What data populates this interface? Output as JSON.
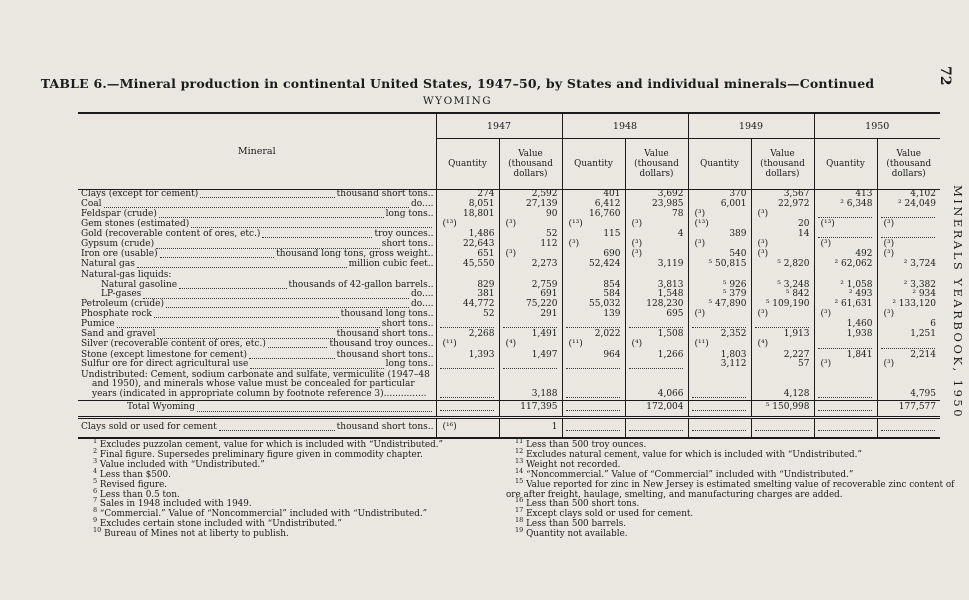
{
  "page": {
    "number": "72",
    "side_text": "MINERALS YEARBOOK, 1950"
  },
  "table": {
    "title": "TABLE 6.—Mineral production in continental United States, 1947–50, by States and individual minerals—Continued",
    "subtitle": "WYOMING",
    "header": {
      "mineral": "Mineral",
      "years": [
        "1947",
        "1948",
        "1949",
        "1950"
      ],
      "quantity": "Quantity",
      "value": "Value (thousand dollars)"
    },
    "rows": [
      {
        "label": "Clays (except for cement)",
        "unit": "thousand short tons..",
        "type": "data",
        "values": [
          "274",
          "2,592",
          "401",
          "3,692",
          "370",
          "3,567",
          "413",
          "4,102"
        ]
      },
      {
        "label": "Coal",
        "unit": "do....",
        "type": "data",
        "values": [
          "8,051",
          "27,139",
          "6,412",
          "23,985",
          "6,001",
          "22,972",
          "² 6,348",
          "² 24,049"
        ]
      },
      {
        "label": "Feldspar (crude)",
        "unit": "long tons..",
        "type": "data",
        "values": [
          "18,801",
          "90",
          "16,760",
          "78",
          "(³)",
          "(³)",
          "",
          ""
        ]
      },
      {
        "label": "Gem stones (estimated)",
        "unit": "",
        "type": "data",
        "values": [
          "(¹³)",
          "(³)",
          "(¹³)",
          "(³)",
          "(¹³)",
          "20",
          "(¹³)",
          "(³)"
        ]
      },
      {
        "label": "Gold (recoverable content of ores, etc.)",
        "unit": "troy ounces..",
        "type": "data",
        "values": [
          "1,486",
          "52",
          "115",
          "4",
          "389",
          "14",
          "",
          ""
        ]
      },
      {
        "label": "Gypsum (crude)",
        "unit": "short tons..",
        "type": "data",
        "values": [
          "22,643",
          "112",
          "(³)",
          "(³)",
          "(³)",
          "(³)",
          "(³)",
          "(³)"
        ]
      },
      {
        "label": "Iron ore (usable)",
        "unit": "thousand long tons, gross weight..",
        "type": "data",
        "values": [
          "651",
          "(³)",
          "690",
          "(³)",
          "540",
          "(³)",
          "492",
          "(³)"
        ]
      },
      {
        "label": "Natural gas",
        "unit": "million cubic feet..",
        "type": "data",
        "values": [
          "45,550",
          "2,273",
          "52,424",
          "3,119",
          "⁵ 50,815",
          "⁵ 2,820",
          "² 62,062",
          "² 3,724"
        ]
      },
      {
        "label": "Natural-gas liquids:",
        "unit": "",
        "type": "group",
        "values": [
          null,
          null,
          null,
          null,
          null,
          null,
          null,
          null
        ]
      },
      {
        "label": "Natural gasoline",
        "unit": "thousands of 42-gallon barrels..",
        "type": "data",
        "indent": 1,
        "values": [
          "829",
          "2,759",
          "854",
          "3,813",
          "⁵ 926",
          "⁵ 3,248",
          "² 1,058",
          "² 3,382"
        ]
      },
      {
        "label": "LP-gases",
        "unit": "do....",
        "type": "data",
        "indent": 1,
        "values": [
          "381",
          "691",
          "584",
          "1,548",
          "⁵ 379",
          "⁵ 842",
          "² 493",
          "² 934"
        ]
      },
      {
        "label": "Petroleum (crude)",
        "unit": "do....",
        "type": "data",
        "values": [
          "44,772",
          "75,220",
          "55,032",
          "128,230",
          "⁵ 47,890",
          "⁵ 109,190",
          "² 61,631",
          "² 133,120"
        ]
      },
      {
        "label": "Phosphate rock",
        "unit": "thousand long tons..",
        "type": "data",
        "values": [
          "52",
          "291",
          "139",
          "695",
          "(³)",
          "(³)",
          "(³)",
          "(³)"
        ]
      },
      {
        "label": "Pumice",
        "unit": "short tons..",
        "type": "data",
        "values": [
          "",
          "",
          "",
          "",
          "",
          "",
          "1,460",
          "6"
        ]
      },
      {
        "label": "Sand and gravel",
        "unit": "thousand short tons..",
        "type": "data",
        "values": [
          "2,268",
          "1,491",
          "2,022",
          "1,508",
          "2,352",
          "1,913",
          "1,938",
          "1,251"
        ]
      },
      {
        "label": "Silver (recoverable content of ores, etc.)",
        "unit": "thousand troy ounces..",
        "type": "data",
        "values": [
          "(¹¹)",
          "(⁴)",
          "(¹¹)",
          "(⁴)",
          "(¹¹)",
          "(⁴)",
          "",
          ""
        ]
      },
      {
        "label": "Stone (except limestone for cement)",
        "unit": "thousand short tons..",
        "type": "data",
        "values": [
          "1,393",
          "1,497",
          "964",
          "1,266",
          "1,803",
          "2,227",
          "1,841",
          "2,214"
        ]
      },
      {
        "label": "Sulfur ore for direct agricultural use",
        "unit": "long tons..",
        "type": "data",
        "values": [
          "",
          "",
          "",
          "",
          "3,112",
          "57",
          "(³)",
          "(³)"
        ]
      },
      {
        "label": "Undistributed: Cement, sodium carbonate and sulfate, vermiculite (1947–48 and 1950), and minerals whose value must be concealed for particular years (indicated in appropriate column by footnote reference 3)...............",
        "unit": "",
        "type": "wraprow",
        "values": [
          "",
          "3,188",
          "",
          "4,066",
          "",
          "4,128",
          "",
          "4,795"
        ]
      },
      {
        "label": "Total Wyoming",
        "unit": "",
        "type": "total",
        "values": [
          "",
          "117,395",
          "",
          "172,004",
          "",
          "⁵ 150,998",
          "",
          "177,577"
        ]
      },
      {
        "label": "Clays sold or used for cement",
        "unit": "thousand short tons..",
        "type": "final",
        "values": [
          "(¹⁶)",
          "1",
          "",
          "",
          "",
          "",
          "",
          ""
        ]
      }
    ],
    "footnotes_left": [
      {
        "marker": "1",
        "text": "Excludes puzzolan cement, value for which is included with “Undistributed.”"
      },
      {
        "marker": "2",
        "text": "Final figure.  Supersedes preliminary figure given in commodity chapter."
      },
      {
        "marker": "3",
        "text": "Value included with “Undistributed.”"
      },
      {
        "marker": "4",
        "text": "Less than $500."
      },
      {
        "marker": "5",
        "text": "Revised figure."
      },
      {
        "marker": "6",
        "text": "Less than 0.5 ton."
      },
      {
        "marker": "7",
        "text": "Sales in 1948 included with 1949."
      },
      {
        "marker": "8",
        "text": "“Commercial.”  Value of “Noncommercial” included with “Undistributed.”"
      },
      {
        "marker": "9",
        "text": "Excludes certain stone included with “Undistributed.”"
      },
      {
        "marker": "10",
        "text": "Bureau of Mines not at liberty to publish."
      }
    ],
    "footnotes_right": [
      {
        "marker": "11",
        "text": "Less than 500 troy ounces."
      },
      {
        "marker": "12",
        "text": "Excludes natural cement, value for which is included with “Undistributed.”"
      },
      {
        "marker": "13",
        "text": "Weight not recorded."
      },
      {
        "marker": "14",
        "text": "“Noncommercial.”  Value of “Commercial” included with “Undistributed.”"
      },
      {
        "marker": "15",
        "text": "Value reported for zinc in New Jersey is estimated smelting value of recoverable zinc content of ore after freight, haulage, smelting, and manufacturing charges are added."
      },
      {
        "marker": "16",
        "text": "Less than 500 short tons."
      },
      {
        "marker": "17",
        "text": "Except clays sold or used for cement."
      },
      {
        "marker": "18",
        "text": "Less than 500 barrels."
      },
      {
        "marker": "19",
        "text": "Quantity not available."
      }
    ]
  }
}
